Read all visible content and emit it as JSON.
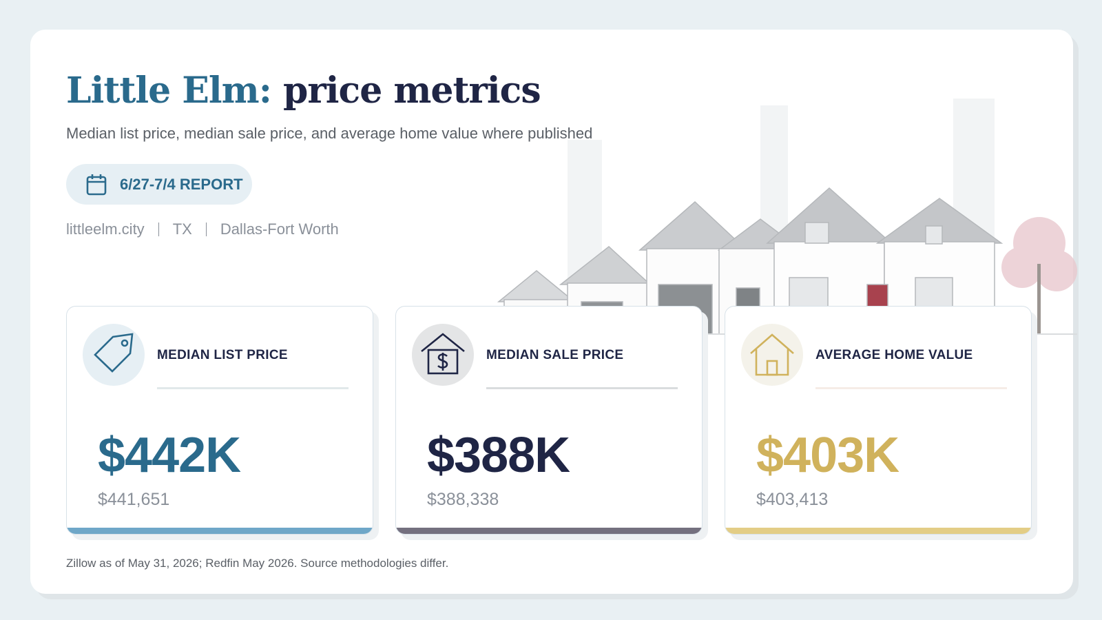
{
  "header": {
    "title_place": "Little Elm:",
    "title_rest": "price metrics",
    "subtitle": "Median list price, median sale price, and average home value where published",
    "badge": "6/27-7/4 REPORT",
    "meta": [
      "littleelm.city",
      "TX",
      "Dallas-Fort Worth"
    ]
  },
  "cards": [
    {
      "label": "MEDIAN LIST PRICE",
      "value": "$442K",
      "exact": "$441,651"
    },
    {
      "label": "MEDIAN SALE PRICE",
      "value": "$388K",
      "exact": "$388,338"
    },
    {
      "label": "AVERAGE HOME VALUE",
      "value": "$403K",
      "exact": "$403,413"
    }
  ],
  "footer": {
    "note": "Zillow as of May 31, 2026; Redfin May 2026. Source methodologies differ."
  }
}
